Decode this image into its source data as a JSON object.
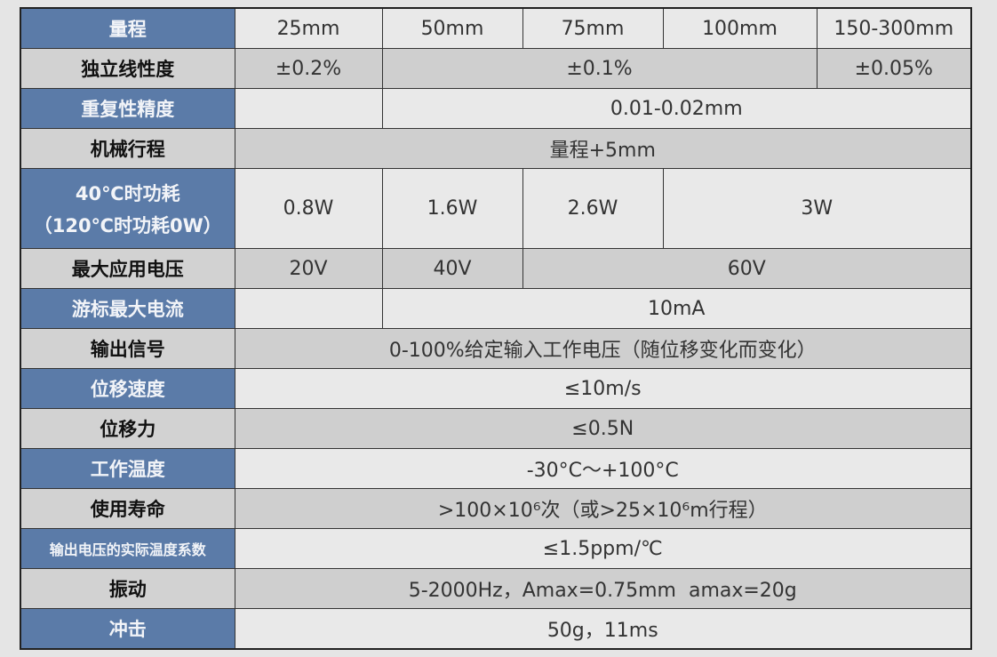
{
  "colors": {
    "label_blue": "#5b7ba8",
    "label_gray": "#d2d2d2",
    "cell_light": "#e9e9e9",
    "cell_dark": "#cfcfcf"
  },
  "rows": [
    {
      "label": "量程",
      "cells": [
        "25mm",
        "50mm",
        "75mm",
        "100mm",
        "150-300mm"
      ]
    },
    {
      "label": "独立线性度",
      "cells": [
        "±0.2%",
        "±0.1%",
        "±0.05%"
      ]
    },
    {
      "label": "重复性精度",
      "cells": [
        "",
        "0.01-0.02mm"
      ]
    },
    {
      "label": "机械行程",
      "cells": [
        "量程+5mm"
      ]
    },
    {
      "label": "40℃时功耗",
      "label2": "（120℃时功耗0W）",
      "cells": [
        "0.8W",
        "1.6W",
        "2.6W",
        "3W"
      ]
    },
    {
      "label": "最大应用电压",
      "cells": [
        "20V",
        "40V",
        "60V"
      ]
    },
    {
      "label": "游标最大电流",
      "cells": [
        "",
        "10mA"
      ]
    },
    {
      "label": "输出信号",
      "cells": [
        "0-100%给定输入工作电压（随位移变化而变化）"
      ]
    },
    {
      "label": "位移速度",
      "cells": [
        "≤10m/s"
      ]
    },
    {
      "label": "位移力",
      "cells": [
        "≤0.5N"
      ]
    },
    {
      "label": "工作温度",
      "cells": [
        "-30°C～+100°C"
      ]
    },
    {
      "label": "使用寿命",
      "cells": [
        ">100×10⁶次（或>25×10⁶m行程）"
      ]
    },
    {
      "label": "输出电压的实际温度系数",
      "cells": [
        "≤1.5ppm/℃"
      ]
    },
    {
      "label": "振动",
      "cells": [
        "5-2000Hz，Amax=0.75mm  amax=20g"
      ]
    },
    {
      "label": "冲击",
      "cells": [
        "50g，11ms"
      ]
    }
  ]
}
